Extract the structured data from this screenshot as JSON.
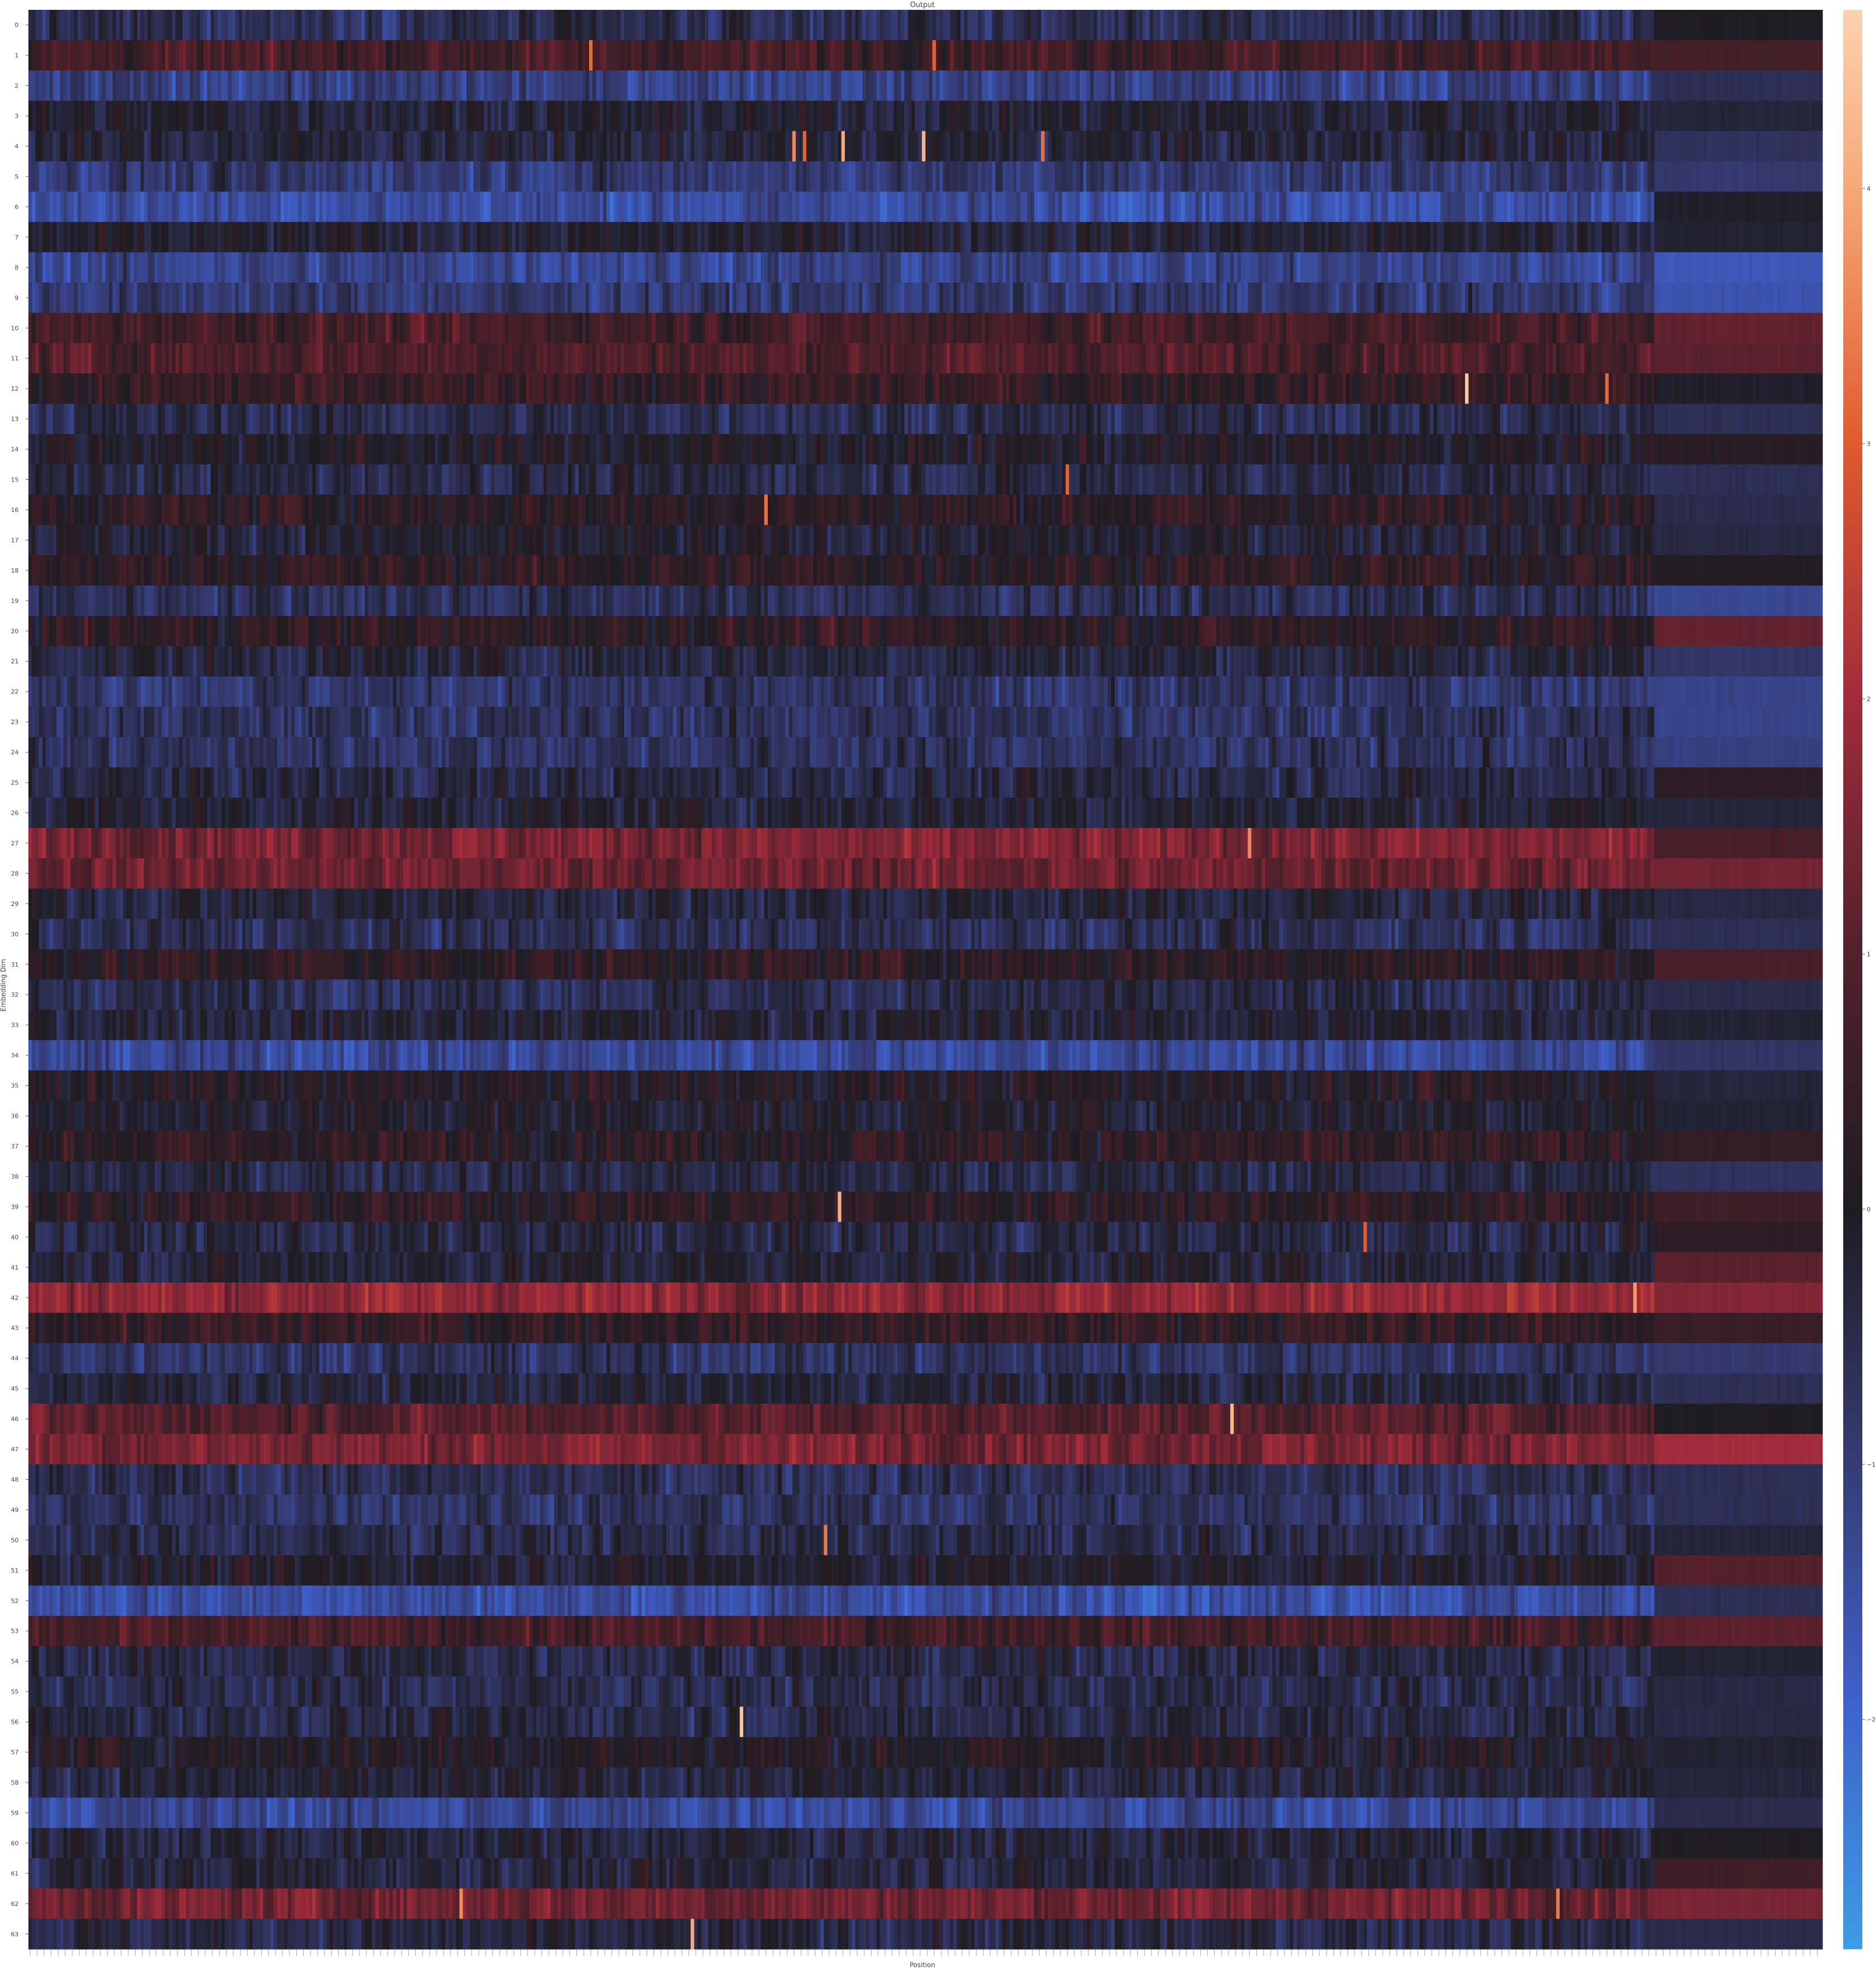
{
  "chart_data": {
    "type": "heatmap",
    "title": "Output",
    "xlabel": "Position",
    "ylabel": "Embedding Dim",
    "rows": 64,
    "columns": 512,
    "row_tick_labels": [
      "0",
      "1",
      "2",
      "3",
      "4",
      "5",
      "6",
      "7",
      "8",
      "9",
      "10",
      "11",
      "12",
      "13",
      "14",
      "15",
      "16",
      "17",
      "18",
      "19",
      "20",
      "21",
      "22",
      "23",
      "24",
      "25",
      "26",
      "27",
      "28",
      "29",
      "30",
      "31",
      "32",
      "33",
      "34",
      "35",
      "36",
      "37",
      "38",
      "39",
      "40",
      "41",
      "42",
      "43",
      "44",
      "45",
      "46",
      "47",
      "48",
      "49",
      "50",
      "51",
      "52",
      "53",
      "54",
      "55",
      "56",
      "57",
      "58",
      "59",
      "60",
      "61",
      "62",
      "63"
    ],
    "colorbar": {
      "vmin": -2.9,
      "vmax": 4.7,
      "tick_values": [
        -2,
        -1,
        0,
        1,
        2,
        3,
        4
      ],
      "tick_labels": [
        "−2",
        "−1",
        "0",
        "1",
        "2",
        "3",
        "4"
      ]
    },
    "colormap": "icefire",
    "colormap_stops": [
      "#3d9be6",
      "#3f5fc9",
      "#34386c",
      "#1e1c22",
      "#52202b",
      "#a12b3c",
      "#e05a2e",
      "#f7a878",
      "#fcd1b0"
    ],
    "padding_columns_start": 464,
    "row_means": [
      -0.6,
      0.7,
      -1.1,
      -0.2,
      -0.3,
      -0.9,
      -1.4,
      -0.2,
      -1.2,
      -0.9,
      0.7,
      0.9,
      0.4,
      -0.5,
      0.0,
      -0.4,
      0.3,
      -0.2,
      0.3,
      -0.6,
      0.3,
      -0.3,
      -0.8,
      -0.7,
      -0.7,
      -0.4,
      -0.2,
      1.5,
      1.3,
      -0.3,
      -0.6,
      0.3,
      -0.5,
      -0.2,
      -1.3,
      0.1,
      -0.1,
      0.3,
      -0.4,
      0.3,
      -0.4,
      -0.2,
      1.8,
      0.4,
      -0.7,
      -0.3,
      1.0,
      1.5,
      -0.6,
      -0.7,
      -0.5,
      -0.1,
      -1.4,
      0.7,
      -0.4,
      -0.5,
      -0.4,
      0.1,
      -0.3,
      -1.3,
      -0.3,
      -0.3,
      1.4,
      -0.4
    ],
    "padding_row_values": [
      0.0,
      0.7,
      -0.6,
      -0.3,
      -0.7,
      -0.9,
      -0.1,
      -0.2,
      -1.7,
      -1.6,
      1.2,
      1.1,
      -0.1,
      -0.6,
      0.2,
      -0.6,
      -0.5,
      -0.4,
      0.1,
      -1.3,
      1.2,
      -0.8,
      -1.2,
      -1.2,
      -1.1,
      0.3,
      -0.3,
      0.8,
      1.4,
      -0.4,
      -0.6,
      0.8,
      -0.5,
      -0.2,
      -0.8,
      -0.3,
      -0.2,
      0.4,
      -0.7,
      0.6,
      0.3,
      1.1,
      1.6,
      0.5,
      -0.9,
      -0.6,
      0.0,
      2.0,
      -0.6,
      -0.6,
      -0.3,
      1.0,
      -0.6,
      1.1,
      -0.2,
      -0.4,
      -0.4,
      -0.2,
      -0.3,
      -0.5,
      0.0,
      0.6,
      1.5,
      -0.5
    ],
    "hotspots": [
      {
        "row": 1,
        "col": 160,
        "value": 3.2
      },
      {
        "row": 1,
        "col": 258,
        "value": 3.1
      },
      {
        "row": 4,
        "col": 218,
        "value": 3.6
      },
      {
        "row": 4,
        "col": 221,
        "value": 3.1
      },
      {
        "row": 4,
        "col": 232,
        "value": 4.0
      },
      {
        "row": 4,
        "col": 255,
        "value": 4.2
      },
      {
        "row": 4,
        "col": 289,
        "value": 3.3
      },
      {
        "row": 12,
        "col": 410,
        "value": 4.5
      },
      {
        "row": 12,
        "col": 450,
        "value": 3.2
      },
      {
        "row": 15,
        "col": 296,
        "value": 3.1
      },
      {
        "row": 16,
        "col": 210,
        "value": 3.3
      },
      {
        "row": 27,
        "col": 348,
        "value": 3.6
      },
      {
        "row": 39,
        "col": 231,
        "value": 4.1
      },
      {
        "row": 40,
        "col": 381,
        "value": 3.0
      },
      {
        "row": 42,
        "col": 458,
        "value": 3.8
      },
      {
        "row": 46,
        "col": 343,
        "value": 4.3
      },
      {
        "row": 50,
        "col": 227,
        "value": 3.4
      },
      {
        "row": 56,
        "col": 203,
        "value": 4.5
      },
      {
        "row": 62,
        "col": 123,
        "value": 3.6
      },
      {
        "row": 62,
        "col": 436,
        "value": 3.4
      },
      {
        "row": 63,
        "col": 189,
        "value": 4.0
      }
    ]
  }
}
